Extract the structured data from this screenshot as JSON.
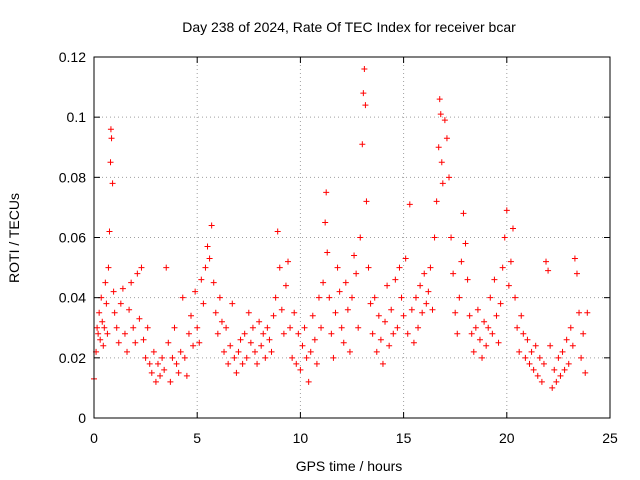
{
  "chart_data": {
    "type": "scatter",
    "title": "Day 238 of 2024, Rate Of TEC Index for receiver bcar",
    "xlabel": "GPS time / hours",
    "ylabel": "ROTI / TECUs",
    "xlim": [
      0,
      25
    ],
    "ylim": [
      0,
      0.12
    ],
    "x_ticks": [
      "0",
      "5",
      "10",
      "15",
      "20",
      "25"
    ],
    "y_ticks": [
      "0",
      "0.02",
      "0.04",
      "0.06",
      "0.08",
      "0.1",
      "0.12"
    ],
    "grid": true,
    "marker": "+",
    "color": "#ff0000",
    "series": [
      {
        "points": [
          [
            0.0,
            0.013
          ],
          [
            0.1,
            0.022
          ],
          [
            0.15,
            0.03
          ],
          [
            0.2,
            0.028
          ],
          [
            0.25,
            0.035
          ],
          [
            0.3,
            0.026
          ],
          [
            0.35,
            0.04
          ],
          [
            0.4,
            0.032
          ],
          [
            0.45,
            0.024
          ],
          [
            0.5,
            0.03
          ],
          [
            0.55,
            0.045
          ],
          [
            0.6,
            0.038
          ],
          [
            0.65,
            0.028
          ],
          [
            0.7,
            0.05
          ],
          [
            0.75,
            0.062
          ],
          [
            0.8,
            0.085
          ],
          [
            0.82,
            0.096
          ],
          [
            0.85,
            0.093
          ],
          [
            0.9,
            0.078
          ],
          [
            0.95,
            0.042
          ],
          [
            1.0,
            0.035
          ],
          [
            1.1,
            0.03
          ],
          [
            1.2,
            0.025
          ],
          [
            1.3,
            0.038
          ],
          [
            1.4,
            0.043
          ],
          [
            1.5,
            0.028
          ],
          [
            1.6,
            0.022
          ],
          [
            1.7,
            0.036
          ],
          [
            1.8,
            0.045
          ],
          [
            1.9,
            0.03
          ],
          [
            2.0,
            0.025
          ],
          [
            2.1,
            0.048
          ],
          [
            2.2,
            0.033
          ],
          [
            2.3,
            0.05
          ],
          [
            2.4,
            0.026
          ],
          [
            2.5,
            0.02
          ],
          [
            2.6,
            0.03
          ],
          [
            2.7,
            0.018
          ],
          [
            2.8,
            0.015
          ],
          [
            2.9,
            0.022
          ],
          [
            3.0,
            0.012
          ],
          [
            3.1,
            0.018
          ],
          [
            3.2,
            0.014
          ],
          [
            3.3,
            0.02
          ],
          [
            3.4,
            0.016
          ],
          [
            3.5,
            0.05
          ],
          [
            3.6,
            0.025
          ],
          [
            3.7,
            0.012
          ],
          [
            3.8,
            0.02
          ],
          [
            3.9,
            0.03
          ],
          [
            4.0,
            0.018
          ],
          [
            4.1,
            0.015
          ],
          [
            4.2,
            0.022
          ],
          [
            4.3,
            0.04
          ],
          [
            4.4,
            0.02
          ],
          [
            4.5,
            0.014
          ],
          [
            4.6,
            0.028
          ],
          [
            4.7,
            0.034
          ],
          [
            4.8,
            0.024
          ],
          [
            4.9,
            0.042
          ],
          [
            5.0,
            0.03
          ],
          [
            5.1,
            0.025
          ],
          [
            5.2,
            0.046
          ],
          [
            5.3,
            0.038
          ],
          [
            5.4,
            0.05
          ],
          [
            5.5,
            0.057
          ],
          [
            5.6,
            0.053
          ],
          [
            5.7,
            0.064
          ],
          [
            5.8,
            0.045
          ],
          [
            5.9,
            0.035
          ],
          [
            6.0,
            0.028
          ],
          [
            6.1,
            0.04
          ],
          [
            6.2,
            0.032
          ],
          [
            6.3,
            0.022
          ],
          [
            6.4,
            0.03
          ],
          [
            6.5,
            0.018
          ],
          [
            6.6,
            0.024
          ],
          [
            6.7,
            0.038
          ],
          [
            6.8,
            0.02
          ],
          [
            6.9,
            0.015
          ],
          [
            7.0,
            0.022
          ],
          [
            7.1,
            0.026
          ],
          [
            7.2,
            0.018
          ],
          [
            7.3,
            0.028
          ],
          [
            7.4,
            0.02
          ],
          [
            7.5,
            0.035
          ],
          [
            7.6,
            0.025
          ],
          [
            7.7,
            0.03
          ],
          [
            7.8,
            0.022
          ],
          [
            7.9,
            0.018
          ],
          [
            8.0,
            0.032
          ],
          [
            8.1,
            0.024
          ],
          [
            8.2,
            0.028
          ],
          [
            8.3,
            0.02
          ],
          [
            8.4,
            0.03
          ],
          [
            8.5,
            0.026
          ],
          [
            8.6,
            0.022
          ],
          [
            8.7,
            0.034
          ],
          [
            8.8,
            0.04
          ],
          [
            8.9,
            0.062
          ],
          [
            9.0,
            0.05
          ],
          [
            9.1,
            0.036
          ],
          [
            9.2,
            0.028
          ],
          [
            9.3,
            0.044
          ],
          [
            9.4,
            0.052
          ],
          [
            9.5,
            0.03
          ],
          [
            9.6,
            0.02
          ],
          [
            9.7,
            0.035
          ],
          [
            9.8,
            0.018
          ],
          [
            9.9,
            0.028
          ],
          [
            10.0,
            0.016
          ],
          [
            10.1,
            0.024
          ],
          [
            10.2,
            0.03
          ],
          [
            10.3,
            0.02
          ],
          [
            10.4,
            0.012
          ],
          [
            10.5,
            0.022
          ],
          [
            10.6,
            0.034
          ],
          [
            10.7,
            0.026
          ],
          [
            10.8,
            0.018
          ],
          [
            10.9,
            0.04
          ],
          [
            11.0,
            0.03
          ],
          [
            11.1,
            0.045
          ],
          [
            11.2,
            0.065
          ],
          [
            11.25,
            0.075
          ],
          [
            11.3,
            0.055
          ],
          [
            11.4,
            0.04
          ],
          [
            11.5,
            0.028
          ],
          [
            11.6,
            0.02
          ],
          [
            11.7,
            0.035
          ],
          [
            11.8,
            0.05
          ],
          [
            11.9,
            0.042
          ],
          [
            12.0,
            0.03
          ],
          [
            12.1,
            0.025
          ],
          [
            12.2,
            0.045
          ],
          [
            12.3,
            0.036
          ],
          [
            12.4,
            0.022
          ],
          [
            12.5,
            0.04
          ],
          [
            12.6,
            0.054
          ],
          [
            12.7,
            0.048
          ],
          [
            12.8,
            0.03
          ],
          [
            12.9,
            0.06
          ],
          [
            13.0,
            0.091
          ],
          [
            13.05,
            0.108
          ],
          [
            13.1,
            0.116
          ],
          [
            13.15,
            0.104
          ],
          [
            13.2,
            0.072
          ],
          [
            13.3,
            0.05
          ],
          [
            13.4,
            0.038
          ],
          [
            13.5,
            0.028
          ],
          [
            13.6,
            0.04
          ],
          [
            13.7,
            0.022
          ],
          [
            13.8,
            0.034
          ],
          [
            13.9,
            0.026
          ],
          [
            14.0,
            0.018
          ],
          [
            14.1,
            0.032
          ],
          [
            14.2,
            0.044
          ],
          [
            14.3,
            0.024
          ],
          [
            14.4,
            0.036
          ],
          [
            14.5,
            0.028
          ],
          [
            14.6,
            0.046
          ],
          [
            14.7,
            0.03
          ],
          [
            14.8,
            0.05
          ],
          [
            14.9,
            0.04
          ],
          [
            15.0,
            0.034
          ],
          [
            15.1,
            0.053
          ],
          [
            15.2,
            0.028
          ],
          [
            15.3,
            0.071
          ],
          [
            15.4,
            0.036
          ],
          [
            15.5,
            0.025
          ],
          [
            15.6,
            0.04
          ],
          [
            15.7,
            0.03
          ],
          [
            15.8,
            0.044
          ],
          [
            15.9,
            0.035
          ],
          [
            16.0,
            0.048
          ],
          [
            16.1,
            0.038
          ],
          [
            16.2,
            0.042
          ],
          [
            16.3,
            0.05
          ],
          [
            16.4,
            0.036
          ],
          [
            16.5,
            0.06
          ],
          [
            16.6,
            0.072
          ],
          [
            16.7,
            0.09
          ],
          [
            16.75,
            0.106
          ],
          [
            16.8,
            0.101
          ],
          [
            16.85,
            0.085
          ],
          [
            16.9,
            0.078
          ],
          [
            17.0,
            0.099
          ],
          [
            17.1,
            0.093
          ],
          [
            17.2,
            0.08
          ],
          [
            17.3,
            0.06
          ],
          [
            17.4,
            0.048
          ],
          [
            17.5,
            0.035
          ],
          [
            17.6,
            0.028
          ],
          [
            17.7,
            0.04
          ],
          [
            17.8,
            0.052
          ],
          [
            17.9,
            0.068
          ],
          [
            18.0,
            0.058
          ],
          [
            18.1,
            0.046
          ],
          [
            18.2,
            0.034
          ],
          [
            18.3,
            0.028
          ],
          [
            18.4,
            0.022
          ],
          [
            18.5,
            0.03
          ],
          [
            18.6,
            0.036
          ],
          [
            18.7,
            0.026
          ],
          [
            18.8,
            0.02
          ],
          [
            18.9,
            0.032
          ],
          [
            19.0,
            0.024
          ],
          [
            19.1,
            0.03
          ],
          [
            19.2,
            0.04
          ],
          [
            19.3,
            0.028
          ],
          [
            19.4,
            0.046
          ],
          [
            19.5,
            0.034
          ],
          [
            19.6,
            0.025
          ],
          [
            19.7,
            0.038
          ],
          [
            19.8,
            0.05
          ],
          [
            19.9,
            0.06
          ],
          [
            20.0,
            0.069
          ],
          [
            20.1,
            0.044
          ],
          [
            20.2,
            0.052
          ],
          [
            20.3,
            0.063
          ],
          [
            20.4,
            0.04
          ],
          [
            20.5,
            0.03
          ],
          [
            20.6,
            0.022
          ],
          [
            20.7,
            0.034
          ],
          [
            20.8,
            0.028
          ],
          [
            20.9,
            0.02
          ],
          [
            21.0,
            0.026
          ],
          [
            21.1,
            0.018
          ],
          [
            21.2,
            0.022
          ],
          [
            21.3,
            0.016
          ],
          [
            21.4,
            0.024
          ],
          [
            21.5,
            0.014
          ],
          [
            21.6,
            0.02
          ],
          [
            21.7,
            0.012
          ],
          [
            21.8,
            0.018
          ],
          [
            21.9,
            0.052
          ],
          [
            22.0,
            0.049
          ],
          [
            22.1,
            0.024
          ],
          [
            22.2,
            0.01
          ],
          [
            22.3,
            0.016
          ],
          [
            22.4,
            0.012
          ],
          [
            22.5,
            0.02
          ],
          [
            22.6,
            0.014
          ],
          [
            22.7,
            0.022
          ],
          [
            22.8,
            0.016
          ],
          [
            22.9,
            0.026
          ],
          [
            23.0,
            0.018
          ],
          [
            23.1,
            0.03
          ],
          [
            23.2,
            0.024
          ],
          [
            23.3,
            0.053
          ],
          [
            23.4,
            0.048
          ],
          [
            23.5,
            0.035
          ],
          [
            23.6,
            0.02
          ],
          [
            23.7,
            0.028
          ],
          [
            23.8,
            0.015
          ],
          [
            23.9,
            0.035
          ]
        ]
      }
    ]
  }
}
